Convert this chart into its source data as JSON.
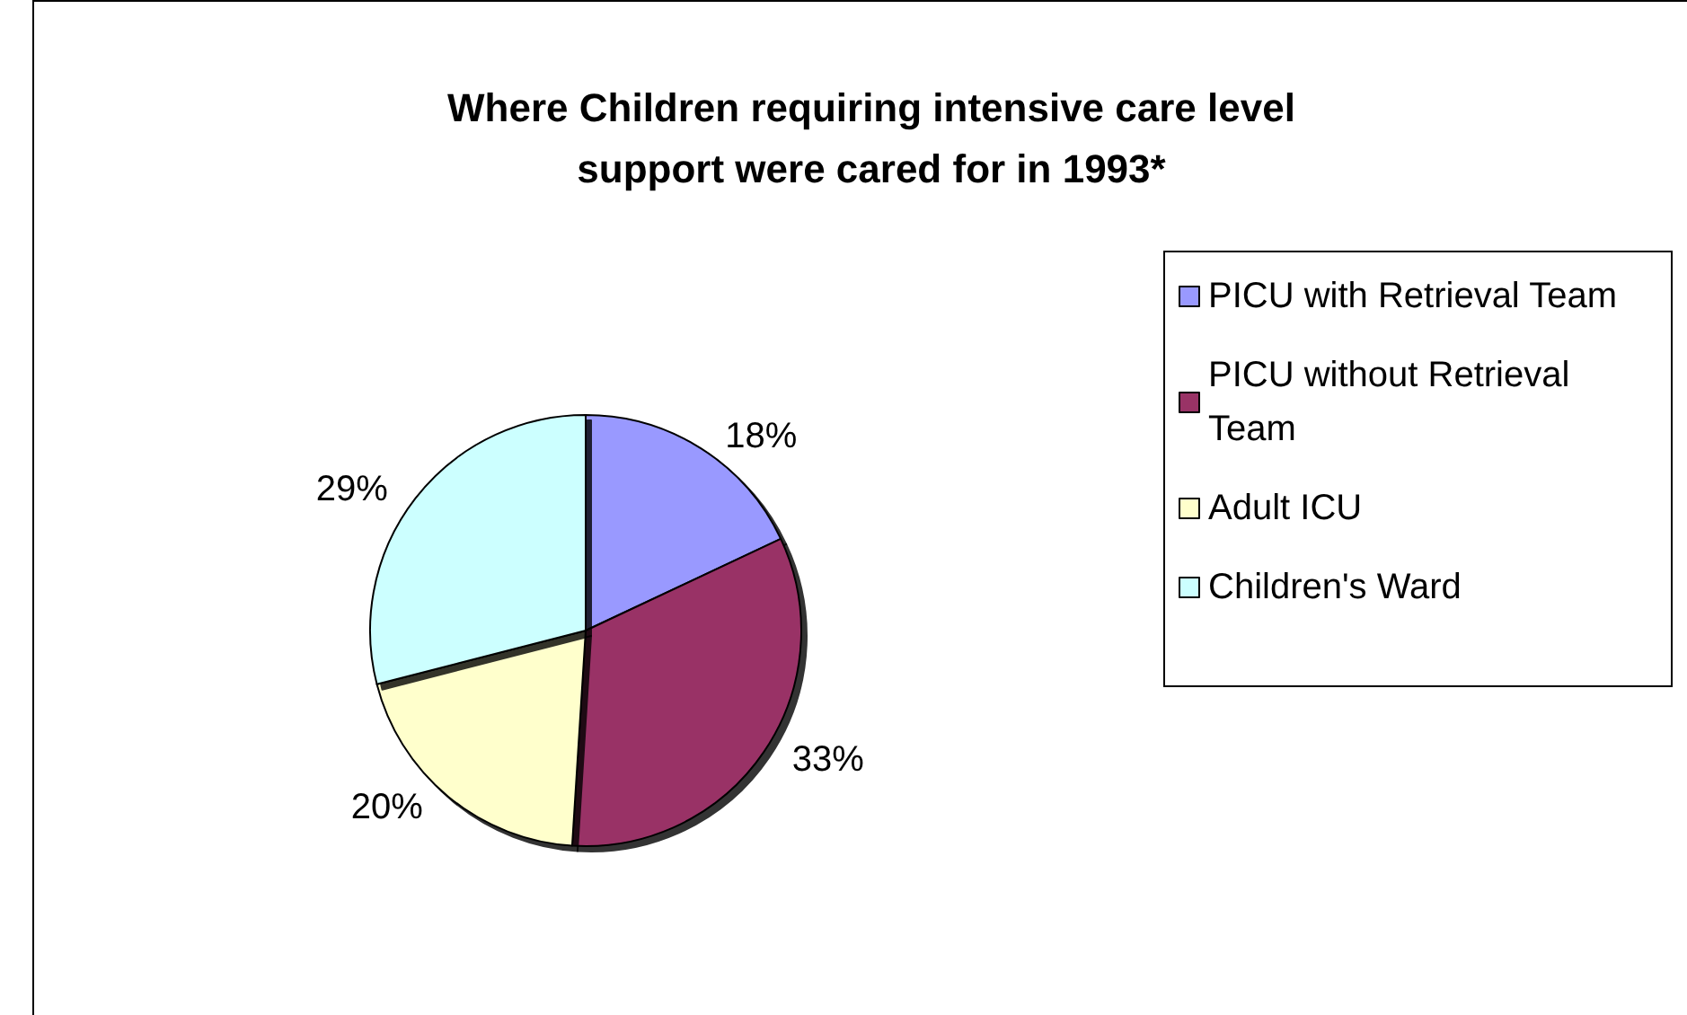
{
  "chart_data": {
    "type": "pie",
    "title": "Where Children requiring intensive care level\nsupport were cared for in 1993*",
    "categories": [
      "PICU with Retrieval Team",
      "PICU without Retrieval Team",
      "Adult ICU",
      "Children's Ward"
    ],
    "values": [
      18,
      33,
      20,
      29
    ],
    "colors": [
      "#9999ff",
      "#993366",
      "#ffffcc",
      "#ccffff"
    ],
    "value_labels": [
      "18%",
      "33%",
      "20%",
      "29%"
    ],
    "legend": "right"
  }
}
